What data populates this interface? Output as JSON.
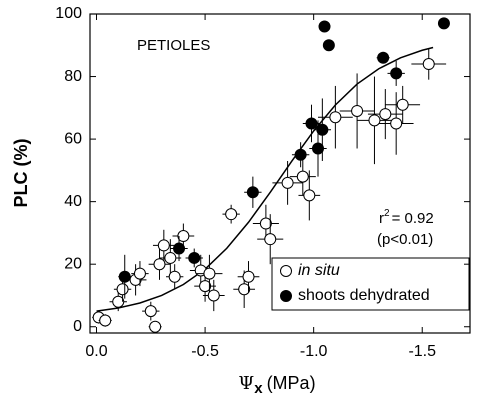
{
  "chart_data": {
    "type": "scatter",
    "annotation": "PETIOLES",
    "stat": {
      "base": "r",
      "sup": "2",
      "rest": "= 0.92",
      "p": "(p<0.01)"
    },
    "xlabel": {
      "symbol": "Ψ",
      "sub": "x",
      "unit": "(MPa)"
    },
    "ylabel": "PLC (%)",
    "xlim": [
      0.03,
      -1.72
    ],
    "ylim": [
      -2,
      100
    ],
    "xticks": [
      {
        "value": 0,
        "label": "0.0"
      },
      -0.5,
      {
        "value": -1,
        "label": "-1.0"
      },
      -1.5
    ],
    "yticks": [
      0,
      20,
      40,
      60,
      80,
      100
    ],
    "legend": "lower right",
    "series": [
      {
        "name": "in situ",
        "color": "#ffffff",
        "x": [
          -0.01,
          -0.04,
          -0.1,
          -0.12,
          -0.18,
          -0.2,
          -0.25,
          -0.27,
          -0.29,
          -0.31,
          -0.34,
          -0.36,
          -0.4,
          -0.48,
          -0.5,
          -0.52,
          -0.54,
          -0.62,
          -0.68,
          -0.7,
          -0.78,
          -0.8,
          -0.88,
          -0.95,
          -0.98,
          -1.1,
          -1.2,
          -1.28,
          -1.33,
          -1.38,
          -1.41,
          -1.53
        ],
        "values": [
          3,
          2,
          8,
          12,
          15,
          17,
          5,
          0,
          20,
          26,
          22,
          16,
          29,
          18,
          13,
          17,
          10,
          36,
          12,
          16,
          33,
          28,
          46,
          48,
          42,
          67,
          69,
          66,
          68,
          65,
          71,
          84
        ],
        "xerr": [
          0.03,
          0.03,
          0.04,
          0.04,
          0.05,
          0.04,
          0.04,
          0.03,
          0.05,
          0.05,
          0.05,
          0.04,
          0.05,
          0.05,
          0.05,
          0.06,
          0.05,
          0.04,
          0.05,
          0.05,
          0.06,
          0.06,
          0.07,
          0.06,
          0.05,
          0.08,
          0.08,
          0.08,
          0.08,
          0.08,
          0.08,
          0.08
        ],
        "yerr": [
          2,
          2,
          3,
          4,
          5,
          4,
          3,
          0,
          5,
          5,
          6,
          4,
          4,
          5,
          5,
          6,
          5,
          3,
          6,
          5,
          6,
          8,
          7,
          6,
          8,
          10,
          12,
          14,
          8,
          10,
          6,
          5
        ]
      },
      {
        "name": "shoots dehydrated",
        "color": "#000000",
        "x": [
          -0.13,
          -0.38,
          -0.45,
          -0.72,
          -0.94,
          -0.99,
          -1.02,
          -1.04,
          -1.05,
          -1.07,
          -1.32,
          -1.38,
          -1.6
        ],
        "values": [
          16,
          25,
          22,
          43,
          55,
          65,
          57,
          63,
          96,
          90,
          86,
          81,
          97
        ],
        "xerr": [
          0.03,
          0.04,
          0.04,
          0.04,
          0.04,
          0.04,
          0.04,
          0.04,
          0.02,
          0.02,
          0.03,
          0.04,
          0.02
        ],
        "yerr": [
          7,
          4,
          3,
          5,
          4,
          6,
          9,
          10,
          0,
          0,
          0,
          4,
          0
        ]
      }
    ],
    "fit": {
      "color": "#000000",
      "x": [
        0,
        -0.1,
        -0.2,
        -0.3,
        -0.4,
        -0.5,
        -0.6,
        -0.7,
        -0.8,
        -0.9,
        -1.0,
        -1.1,
        -1.2,
        -1.3,
        -1.4,
        -1.5,
        -1.55
      ],
      "y": [
        5,
        6,
        7.6,
        10,
        13.5,
        18.4,
        25.1,
        33.4,
        43,
        53,
        62.6,
        70.9,
        77.6,
        82.5,
        86,
        88.4,
        89.3
      ]
    }
  }
}
